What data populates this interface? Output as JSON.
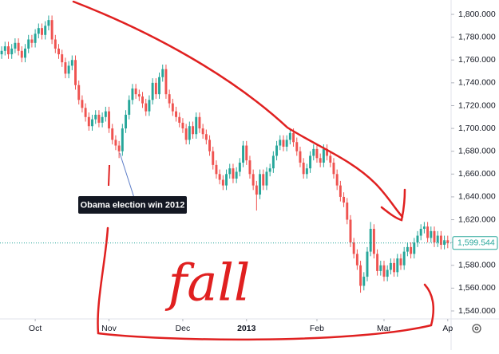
{
  "chart_data": {
    "type": "candlestick",
    "up_color": "#26a69a",
    "down_color": "#ef5350",
    "ylim": [
      1533,
      1812.6
    ],
    "yticks": [
      {
        "value": 1540,
        "label": "1,540.000"
      },
      {
        "value": 1560,
        "label": "1,560.000"
      },
      {
        "value": 1580,
        "label": "1,580.000"
      },
      {
        "value": 1600,
        "label": "1,600.000"
      },
      {
        "value": 1620,
        "label": "1,620.000"
      },
      {
        "value": 1640,
        "label": "1,640.000"
      },
      {
        "value": 1660,
        "label": "1,660.000"
      },
      {
        "value": 1680,
        "label": "1,680.000"
      },
      {
        "value": 1700,
        "label": "1,700.000"
      },
      {
        "value": 1720,
        "label": "1,720.000"
      },
      {
        "value": 1740,
        "label": "1,740.000"
      },
      {
        "value": 1760,
        "label": "1,760.000"
      },
      {
        "value": 1780,
        "label": "1,780.000"
      },
      {
        "value": 1800,
        "label": "1,800.000"
      }
    ],
    "xlim": [
      -0.5,
      134
    ],
    "xticks": [
      {
        "value": 10,
        "label": "Oct"
      },
      {
        "value": 32,
        "label": "Nov"
      },
      {
        "value": 54,
        "label": "Dec"
      },
      {
        "value": 73,
        "label": "2013"
      },
      {
        "value": 94,
        "label": "Feb"
      },
      {
        "value": 114,
        "label": "Mar"
      },
      {
        "value": 133,
        "label": "Ap"
      }
    ],
    "last_price": {
      "value": 1599.544,
      "label": "1,599.544"
    },
    "annotation": "Obama election win 2012",
    "handwriting": "fall",
    "ohlc": [
      [
        1765,
        1772,
        1761,
        1768
      ],
      [
        1768,
        1776,
        1764,
        1772
      ],
      [
        1772,
        1776,
        1761,
        1765
      ],
      [
        1765,
        1774,
        1761,
        1770
      ],
      [
        1770,
        1779,
        1766,
        1775
      ],
      [
        1775,
        1779,
        1764,
        1768
      ],
      [
        1768,
        1772,
        1758,
        1762
      ],
      [
        1762,
        1774,
        1758,
        1770
      ],
      [
        1770,
        1782,
        1766,
        1778
      ],
      [
        1778,
        1782,
        1771,
        1775
      ],
      [
        1775,
        1787,
        1771,
        1783
      ],
      [
        1783,
        1792,
        1779,
        1788
      ],
      [
        1788,
        1792,
        1778,
        1782
      ],
      [
        1782,
        1794,
        1778,
        1790
      ],
      [
        1790,
        1799,
        1786,
        1795
      ],
      [
        1795,
        1799,
        1774,
        1778
      ],
      [
        1778,
        1782,
        1766,
        1770
      ],
      [
        1770,
        1774,
        1761,
        1765
      ],
      [
        1765,
        1769,
        1754,
        1758
      ],
      [
        1758,
        1762,
        1744,
        1748
      ],
      [
        1748,
        1759,
        1744,
        1755
      ],
      [
        1755,
        1764,
        1751,
        1760
      ],
      [
        1760,
        1764,
        1734,
        1738
      ],
      [
        1738,
        1742,
        1721,
        1725
      ],
      [
        1725,
        1729,
        1714,
        1718
      ],
      [
        1718,
        1722,
        1706,
        1710
      ],
      [
        1710,
        1714,
        1698,
        1702
      ],
      [
        1702,
        1712,
        1698,
        1708
      ],
      [
        1708,
        1716,
        1704,
        1712
      ],
      [
        1712,
        1716,
        1701,
        1705
      ],
      [
        1705,
        1714,
        1701,
        1710
      ],
      [
        1710,
        1719,
        1706,
        1715
      ],
      [
        1715,
        1719,
        1696,
        1700
      ],
      [
        1700,
        1704,
        1686,
        1690
      ],
      [
        1690,
        1694,
        1681,
        1685
      ],
      [
        1685,
        1689,
        1674,
        1680
      ],
      [
        1680,
        1704,
        1676,
        1700
      ],
      [
        1700,
        1716,
        1696,
        1712
      ],
      [
        1712,
        1729,
        1708,
        1725
      ],
      [
        1725,
        1739,
        1721,
        1735
      ],
      [
        1735,
        1739,
        1726,
        1730
      ],
      [
        1730,
        1734,
        1724,
        1728
      ],
      [
        1728,
        1732,
        1718,
        1722
      ],
      [
        1722,
        1726,
        1711,
        1715
      ],
      [
        1715,
        1729,
        1711,
        1725
      ],
      [
        1725,
        1744,
        1721,
        1740
      ],
      [
        1740,
        1744,
        1726,
        1730
      ],
      [
        1730,
        1749,
        1726,
        1745
      ],
      [
        1745,
        1756,
        1741,
        1752
      ],
      [
        1752,
        1756,
        1726,
        1730
      ],
      [
        1730,
        1734,
        1718,
        1722
      ],
      [
        1722,
        1726,
        1711,
        1715
      ],
      [
        1715,
        1719,
        1706,
        1710
      ],
      [
        1710,
        1714,
        1701,
        1705
      ],
      [
        1705,
        1709,
        1696,
        1700
      ],
      [
        1700,
        1704,
        1686,
        1690
      ],
      [
        1690,
        1706,
        1686,
        1702
      ],
      [
        1702,
        1706,
        1691,
        1695
      ],
      [
        1695,
        1714,
        1691,
        1710
      ],
      [
        1710,
        1714,
        1696,
        1700
      ],
      [
        1700,
        1704,
        1691,
        1695
      ],
      [
        1695,
        1699,
        1686,
        1690
      ],
      [
        1690,
        1694,
        1676,
        1680
      ],
      [
        1680,
        1684,
        1664,
        1668
      ],
      [
        1668,
        1672,
        1656,
        1660
      ],
      [
        1660,
        1664,
        1651,
        1655
      ],
      [
        1655,
        1659,
        1646,
        1650
      ],
      [
        1650,
        1664,
        1646,
        1660
      ],
      [
        1660,
        1669,
        1656,
        1665
      ],
      [
        1665,
        1669,
        1652,
        1656
      ],
      [
        1656,
        1666,
        1652,
        1662
      ],
      [
        1662,
        1674,
        1658,
        1670
      ],
      [
        1670,
        1689,
        1666,
        1685
      ],
      [
        1685,
        1689,
        1668,
        1672
      ],
      [
        1672,
        1676,
        1656,
        1660
      ],
      [
        1660,
        1664,
        1646,
        1650
      ],
      [
        1650,
        1654,
        1628,
        1642
      ],
      [
        1642,
        1664,
        1638,
        1660
      ],
      [
        1660,
        1664,
        1646,
        1650
      ],
      [
        1650,
        1666,
        1646,
        1662
      ],
      [
        1662,
        1669,
        1658,
        1665
      ],
      [
        1665,
        1680,
        1661,
        1676
      ],
      [
        1676,
        1689,
        1672,
        1685
      ],
      [
        1685,
        1694,
        1681,
        1690
      ],
      [
        1690,
        1694,
        1680,
        1684
      ],
      [
        1684,
        1694,
        1680,
        1690
      ],
      [
        1690,
        1700,
        1686,
        1696
      ],
      [
        1696,
        1700,
        1684,
        1688
      ],
      [
        1688,
        1692,
        1676,
        1680
      ],
      [
        1680,
        1684,
        1666,
        1670
      ],
      [
        1670,
        1674,
        1656,
        1660
      ],
      [
        1660,
        1669,
        1656,
        1665
      ],
      [
        1665,
        1680,
        1661,
        1676
      ],
      [
        1676,
        1686,
        1672,
        1682
      ],
      [
        1682,
        1686,
        1670,
        1674
      ],
      [
        1674,
        1678,
        1666,
        1670
      ],
      [
        1670,
        1686,
        1666,
        1682
      ],
      [
        1682,
        1686,
        1672,
        1676
      ],
      [
        1676,
        1680,
        1666,
        1670
      ],
      [
        1670,
        1674,
        1656,
        1660
      ],
      [
        1660,
        1664,
        1646,
        1650
      ],
      [
        1650,
        1654,
        1636,
        1640
      ],
      [
        1640,
        1644,
        1631,
        1635
      ],
      [
        1635,
        1639,
        1616,
        1620
      ],
      [
        1620,
        1624,
        1596,
        1600
      ],
      [
        1600,
        1604,
        1586,
        1590
      ],
      [
        1590,
        1594,
        1576,
        1580
      ],
      [
        1580,
        1584,
        1556,
        1562
      ],
      [
        1562,
        1574,
        1558,
        1570
      ],
      [
        1570,
        1596,
        1566,
        1592
      ],
      [
        1592,
        1618,
        1588,
        1612
      ],
      [
        1612,
        1616,
        1586,
        1590
      ],
      [
        1590,
        1594,
        1571,
        1575
      ],
      [
        1575,
        1584,
        1571,
        1580
      ],
      [
        1580,
        1584,
        1566,
        1570
      ],
      [
        1570,
        1580,
        1566,
        1576
      ],
      [
        1576,
        1586,
        1572,
        1582
      ],
      [
        1582,
        1586,
        1570,
        1574
      ],
      [
        1574,
        1590,
        1570,
        1586
      ],
      [
        1586,
        1590,
        1576,
        1580
      ],
      [
        1580,
        1596,
        1576,
        1592
      ],
      [
        1592,
        1600,
        1588,
        1596
      ],
      [
        1596,
        1600,
        1586,
        1590
      ],
      [
        1590,
        1604,
        1586,
        1600
      ],
      [
        1600,
        1610,
        1596,
        1606
      ],
      [
        1606,
        1616,
        1602,
        1612
      ],
      [
        1612,
        1618,
        1608,
        1614
      ],
      [
        1614,
        1618,
        1600,
        1604
      ],
      [
        1604,
        1614,
        1600,
        1610
      ],
      [
        1610,
        1614,
        1596,
        1600
      ],
      [
        1600,
        1610,
        1596,
        1606
      ],
      [
        1606,
        1610,
        1594,
        1598
      ],
      [
        1598,
        1606,
        1594,
        1602
      ],
      [
        1602,
        1606,
        1595,
        1599.544
      ]
    ]
  }
}
